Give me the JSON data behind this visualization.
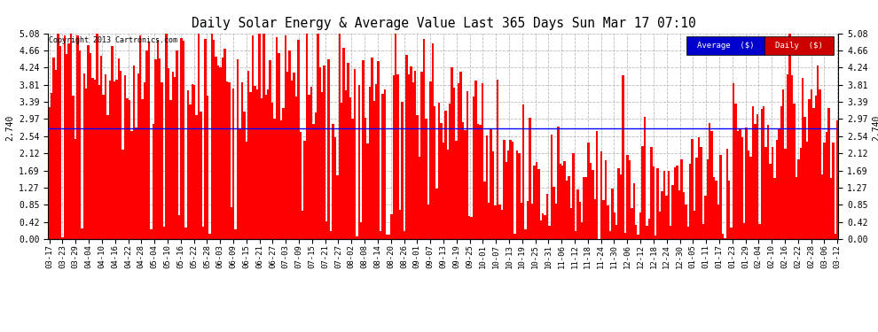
{
  "title": "Daily Solar Energy & Average Value Last 365 Days Sun Mar 17 07:10",
  "copyright": "Copyright 2013 Cartronics.com",
  "average_value": 2.74,
  "average_label": "2.740",
  "bar_color": "#FF0000",
  "average_line_color": "#0000FF",
  "background_color": "#FFFFFF",
  "plot_bg_color": "#FFFFFF",
  "grid_color": "#AAAAAA",
  "yticks": [
    0.0,
    0.42,
    0.85,
    1.27,
    1.69,
    2.12,
    2.54,
    2.97,
    3.39,
    3.81,
    4.24,
    4.66,
    5.08
  ],
  "ymax": 5.08,
  "ymin": 0.0,
  "legend_avg_bg": "#0000CC",
  "legend_daily_bg": "#CC0000",
  "legend_text_color": "#FFFFFF",
  "x_tick_labels": [
    "03-17",
    "03-23",
    "03-29",
    "04-04",
    "04-10",
    "04-16",
    "04-22",
    "04-28",
    "05-04",
    "05-10",
    "05-16",
    "05-22",
    "05-28",
    "06-03",
    "06-09",
    "06-15",
    "06-21",
    "06-27",
    "07-03",
    "07-09",
    "07-15",
    "07-21",
    "07-27",
    "08-02",
    "08-08",
    "08-14",
    "08-20",
    "08-26",
    "09-01",
    "09-07",
    "09-13",
    "09-19",
    "09-25",
    "10-01",
    "10-07",
    "10-13",
    "10-19",
    "10-25",
    "10-31",
    "11-06",
    "11-12",
    "11-18",
    "11-24",
    "11-30",
    "12-06",
    "12-12",
    "12-18",
    "12-24",
    "12-30",
    "01-05",
    "01-11",
    "01-17",
    "01-23",
    "01-29",
    "02-04",
    "02-10",
    "02-16",
    "02-22",
    "02-28",
    "03-06",
    "03-12"
  ],
  "n_bars": 365,
  "seed": 12345
}
